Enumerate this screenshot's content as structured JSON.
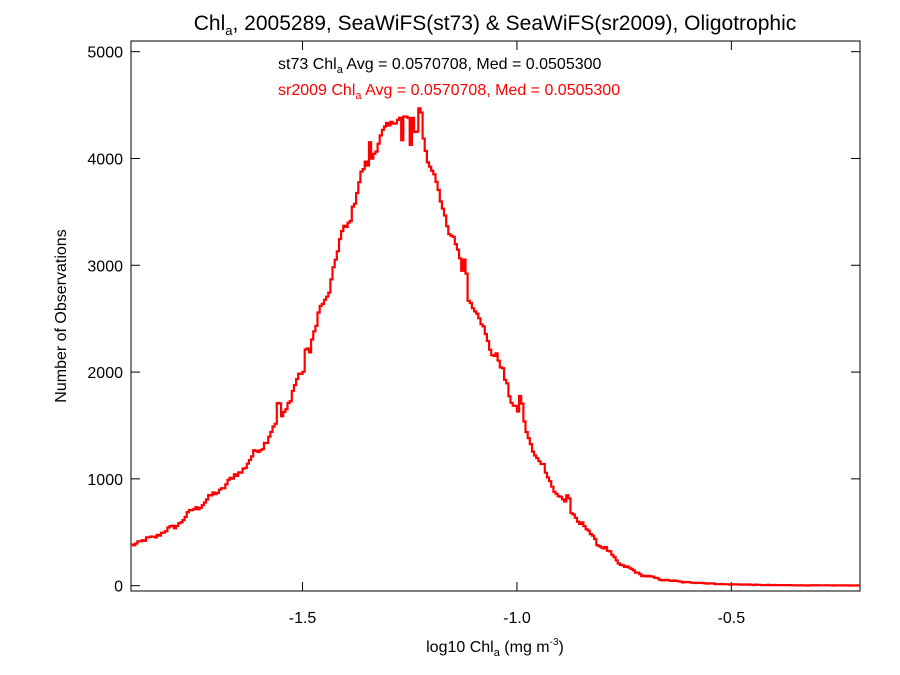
{
  "chart_data": {
    "type": "histogram",
    "title": {
      "prefix": "Chl",
      "prefix_sub": "a",
      "rest": ", 2005289, SeaWiFS(st73) & SeaWiFS(sr2009), Oligotrophic"
    },
    "xlabel": {
      "prefix": "log10 Chl",
      "sub": "a",
      "mid": " (mg m",
      "sup": "-3",
      "suffix": ")"
    },
    "ylabel": "Number of Observations",
    "xlim": [
      -1.9,
      -0.2
    ],
    "ylim": [
      -50,
      5100
    ],
    "x_ticks": [
      -1.5,
      -1.0,
      -0.5
    ],
    "x_tick_labels": [
      "-1.5",
      "-1.0",
      "-0.5"
    ],
    "y_ticks": [
      0,
      1000,
      2000,
      3000,
      4000,
      5000
    ],
    "y_tick_labels": [
      "0",
      "1000",
      "2000",
      "3000",
      "4000",
      "5000"
    ],
    "grid": false,
    "annotations": [
      {
        "label": "st73 Chl",
        "sub": "a",
        "rest": " Avg = 0.0570708, Med = 0.0505300",
        "color": "#000000"
      },
      {
        "label": "sr2009 Chl",
        "sub": "a",
        "rest": " Avg = 0.0570708, Med = 0.0505300",
        "color": "#ff0000"
      }
    ],
    "series": [
      {
        "color": "#ff0000",
        "bin_start": -1.9,
        "bin_width": 0.005,
        "x": [
          -1.9,
          -1.85,
          -1.8,
          -1.75,
          -1.7,
          -1.65,
          -1.6,
          -1.55,
          -1.5,
          -1.45,
          -1.4,
          -1.35,
          -1.3,
          -1.275,
          -1.25,
          -1.225,
          -1.2,
          -1.15,
          -1.1,
          -1.05,
          -1.0,
          -0.95,
          -0.9,
          -0.85,
          -0.8,
          -0.75,
          -0.7,
          -0.65,
          -0.6,
          -0.5,
          -0.4,
          -0.3,
          -0.2
        ],
        "y": [
          380,
          450,
          550,
          720,
          870,
          1050,
          1280,
          1580,
          2000,
          2650,
          3350,
          3950,
          4300,
          4380,
          4380,
          4250,
          3900,
          3250,
          2600,
          2150,
          1650,
          1180,
          830,
          580,
          360,
          180,
          90,
          50,
          30,
          12,
          5,
          3,
          2
        ],
        "noise_amplitude": 35,
        "spikes": [
          {
            "x": -1.555,
            "dy": 130
          },
          {
            "x": -1.49,
            "dy": 140
          },
          {
            "x": -1.342,
            "dy": 160
          },
          {
            "x": -1.268,
            "dy": -220
          },
          {
            "x": -1.247,
            "dy": -260
          },
          {
            "x": -1.237,
            "dy": -80
          },
          {
            "x": -1.225,
            "dy": 210
          },
          {
            "x": -1.12,
            "dy": 150
          },
          {
            "x": -0.99,
            "dy": 140
          },
          {
            "x": -0.88,
            "dy": 90
          }
        ]
      }
    ]
  }
}
